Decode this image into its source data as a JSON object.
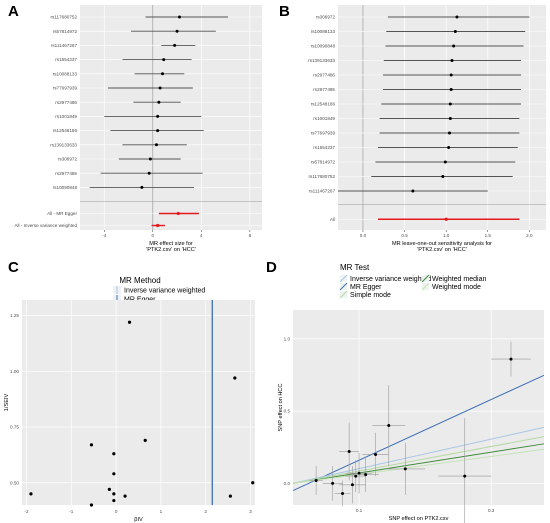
{
  "colors": {
    "panel_bg": "#ebebeb",
    "grid": "#ffffff",
    "point": "#000000",
    "ci_line": "#555555",
    "highlight_red": "#e41a1c",
    "egger_blue": "#3b6fb6",
    "ivw_lightblue": "#a6c6e6",
    "simple_mode_green": "#b5d9a4",
    "weighted_median_green": "#3f8a3b",
    "weighted_mode_green": "#c6e3b8"
  },
  "chart_data": [
    {
      "panel": "A",
      "type": "scatter",
      "subtype": "forest",
      "xlabel": "MR effect size for\n'PTK2.csv' on 'HCC'",
      "xticks": [
        -4,
        0,
        4,
        8
      ],
      "xlim": [
        -6,
        9
      ],
      "snps": [
        {
          "label": "rs117680752",
          "est": 2.2,
          "lo": -0.6,
          "hi": 6.2
        },
        {
          "label": "rs57814972",
          "est": 2.0,
          "lo": -1.8,
          "hi": 5.2
        },
        {
          "label": "rs111467267",
          "est": 1.8,
          "lo": 0.7,
          "hi": 3.5
        },
        {
          "label": "rs1554237",
          "est": 0.9,
          "lo": -2.5,
          "hi": 3.2
        },
        {
          "label": "rs10088133",
          "est": 0.8,
          "lo": -1.5,
          "hi": 2.6
        },
        {
          "label": "rs77697939",
          "est": 0.6,
          "lo": -3.7,
          "hi": 3.3
        },
        {
          "label": "rs2977486",
          "est": 0.5,
          "lo": -1.6,
          "hi": 2.3
        },
        {
          "label": "rs1001849",
          "est": 0.4,
          "lo": -4.0,
          "hi": 4.0
        },
        {
          "label": "rs12548186",
          "est": 0.4,
          "lo": -3.5,
          "hi": 4.2
        },
        {
          "label": "rs139133633",
          "est": 0.3,
          "lo": -2.5,
          "hi": 2.8
        },
        {
          "label": "rs306972",
          "est": -0.2,
          "lo": -2.8,
          "hi": 2.3
        },
        {
          "label": "rs2977485",
          "est": -0.3,
          "lo": -4.3,
          "hi": 4.1
        },
        {
          "label": "rs10090848",
          "est": -0.9,
          "lo": -5.2,
          "hi": 3.4
        }
      ],
      "summary": [
        {
          "label": "All - MR Egger",
          "est": 2.1,
          "lo": 0.5,
          "hi": 3.8
        },
        {
          "label": "All - Inverse variance weighted",
          "est": 0.4,
          "lo": -0.1,
          "hi": 1.0
        }
      ]
    },
    {
      "panel": "B",
      "type": "scatter",
      "subtype": "leave-one-out",
      "xlabel": "MR leave-one-out sensitivity analysis for\n'PTK2.csv' on 'HCC'",
      "xticks": [
        0.0,
        0.5,
        1.0,
        1.5,
        2.0
      ],
      "xlim": [
        -0.3,
        2.2
      ],
      "snps": [
        {
          "label": "rs306972",
          "est": 1.13,
          "lo": 0.3,
          "hi": 2.0
        },
        {
          "label": "rs10088133",
          "est": 1.11,
          "lo": 0.28,
          "hi": 1.95
        },
        {
          "label": "rs10090848",
          "est": 1.09,
          "lo": 0.27,
          "hi": 1.93
        },
        {
          "label": "rs139133633",
          "est": 1.07,
          "lo": 0.25,
          "hi": 1.9
        },
        {
          "label": "rs2977486",
          "est": 1.06,
          "lo": 0.24,
          "hi": 1.9
        },
        {
          "label": "rs2977485",
          "est": 1.06,
          "lo": 0.24,
          "hi": 1.9
        },
        {
          "label": "rs12548186",
          "est": 1.05,
          "lo": 0.22,
          "hi": 1.9
        },
        {
          "label": "rs1001849",
          "est": 1.05,
          "lo": 0.2,
          "hi": 1.88
        },
        {
          "label": "rs77697939",
          "est": 1.04,
          "lo": 0.2,
          "hi": 1.88
        },
        {
          "label": "rs1554237",
          "est": 1.03,
          "lo": 0.18,
          "hi": 1.86
        },
        {
          "label": "rs57814972",
          "est": 0.99,
          "lo": 0.15,
          "hi": 1.83
        },
        {
          "label": "rs117680752",
          "est": 0.96,
          "lo": 0.1,
          "hi": 1.8
        },
        {
          "label": "rs111467267",
          "est": 0.6,
          "lo": -0.3,
          "hi": 1.5
        }
      ],
      "summary": [
        {
          "label": "All",
          "est": 1.0,
          "lo": 0.18,
          "hi": 1.88
        }
      ]
    },
    {
      "panel": "C",
      "type": "scatter",
      "subtype": "funnel",
      "legend_title": "MR Method",
      "legend": [
        "Inverse variance weighted",
        "MR Egger"
      ],
      "xlabel": "βIV",
      "ylabel": "1/SEIV",
      "xlim": [
        -2.1,
        3.1
      ],
      "ylim": [
        0.4,
        1.32
      ],
      "xticks": [
        -2,
        -1,
        0,
        1,
        2,
        3
      ],
      "yticks": [
        0.5,
        0.75,
        1.0,
        1.25
      ],
      "ytick_labels": [
        "0.50",
        "0.75",
        "1.00",
        "1.25"
      ],
      "vlines": [
        {
          "method": "Inverse variance weighted",
          "x": 2.13
        },
        {
          "method": "MR Egger",
          "x": 2.15
        }
      ],
      "points": [
        [
          0.3,
          1.22
        ],
        [
          -1.9,
          0.45
        ],
        [
          -0.55,
          0.67
        ],
        [
          -0.55,
          0.4
        ],
        [
          -0.05,
          0.54
        ],
        [
          -0.05,
          0.63
        ],
        [
          0.65,
          0.69
        ],
        [
          -0.05,
          0.45
        ],
        [
          -0.05,
          0.42
        ],
        [
          -0.15,
          0.47
        ],
        [
          0.2,
          0.44
        ],
        [
          2.55,
          0.44
        ],
        [
          2.65,
          0.97
        ],
        [
          3.05,
          0.5
        ]
      ]
    },
    {
      "panel": "D",
      "type": "scatter",
      "subtype": "mr-scatter",
      "legend_title": "MR Test",
      "legend": [
        "Inverse variance weighted",
        "MR Egger",
        "Simple mode",
        "Weighted median",
        "Weighted mode"
      ],
      "xlabel": "SNP effect on PTK2.csv",
      "ylabel": "SNP effect on HCC",
      "xlim": [
        0.0,
        0.38
      ],
      "ylim": [
        -0.15,
        1.2
      ],
      "xticks": [
        0.1,
        0.3
      ],
      "yticks": [
        0.0,
        0.5,
        1.0
      ],
      "lines": [
        {
          "method": "MR Egger",
          "intercept": -0.05,
          "slope": 2.1
        },
        {
          "method": "Inverse variance weighted",
          "intercept": 0.0,
          "slope": 1.02
        },
        {
          "method": "Weighted median",
          "intercept": 0.0,
          "slope": 0.72
        },
        {
          "method": "Simple mode",
          "intercept": 0.0,
          "slope": 0.85
        },
        {
          "method": "Weighted mode",
          "intercept": 0.0,
          "slope": 0.62
        }
      ],
      "points": [
        {
          "x": 0.035,
          "y": 0.02,
          "xe": 0.01,
          "ye": 0.1
        },
        {
          "x": 0.06,
          "y": 0.0,
          "xe": 0.015,
          "ye": 0.12
        },
        {
          "x": 0.075,
          "y": -0.07,
          "xe": 0.012,
          "ye": 0.09
        },
        {
          "x": 0.085,
          "y": 0.22,
          "xe": 0.015,
          "ye": 0.2
        },
        {
          "x": 0.09,
          "y": -0.01,
          "xe": 0.02,
          "ye": 0.13
        },
        {
          "x": 0.095,
          "y": 0.05,
          "xe": 0.015,
          "ye": 0.11
        },
        {
          "x": 0.1,
          "y": 0.07,
          "xe": 0.02,
          "ye": 0.14
        },
        {
          "x": 0.11,
          "y": 0.06,
          "xe": 0.02,
          "ye": 0.12
        },
        {
          "x": 0.125,
          "y": 0.2,
          "xe": 0.02,
          "ye": 0.15
        },
        {
          "x": 0.145,
          "y": 0.4,
          "xe": 0.025,
          "ye": 0.28
        },
        {
          "x": 0.17,
          "y": 0.1,
          "xe": 0.03,
          "ye": 0.18
        },
        {
          "x": 0.26,
          "y": 0.05,
          "xe": 0.04,
          "ye": 0.4
        },
        {
          "x": 0.33,
          "y": 0.86,
          "xe": 0.03,
          "ye": 0.12
        }
      ]
    }
  ],
  "panel_labels": [
    "A",
    "B",
    "C",
    "D"
  ]
}
